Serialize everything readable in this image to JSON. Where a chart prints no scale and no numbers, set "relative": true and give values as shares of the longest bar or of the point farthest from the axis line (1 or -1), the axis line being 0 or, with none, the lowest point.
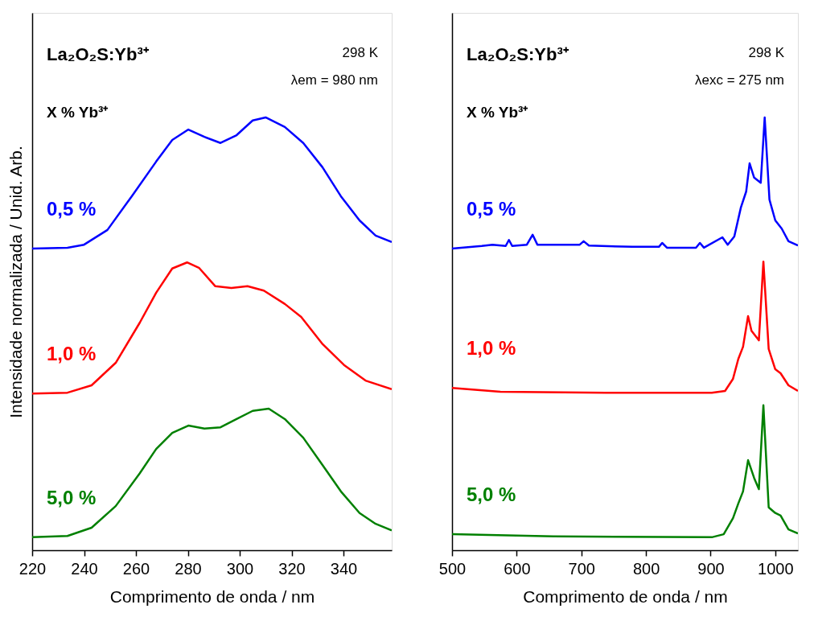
{
  "chart_data": [
    {
      "type": "line",
      "relative": true,
      "xlabel": "Comprimento de onda / nm",
      "ylabel": "Intensidade normalizada / Unid. Arb.",
      "xlim": [
        220,
        358.6
      ],
      "xticks": [
        220,
        240,
        260,
        280,
        300,
        320,
        340
      ],
      "grid": false,
      "legend": false,
      "marker": "none",
      "line_style": "solid",
      "annotations": [
        "La₂O₂S:Yb³⁺",
        "298 K",
        "λem = 980 nm",
        "X % Yb³⁺"
      ],
      "series": [
        {
          "name": "0,5 %",
          "color": "#0000ff",
          "x": [
            220,
            233.6,
            240,
            249,
            258.4,
            267.8,
            274,
            280.2,
            286.4,
            292.6,
            298.8,
            305,
            310,
            317.4,
            324.5,
            331.9,
            339,
            346.2,
            352.4,
            358.6
          ],
          "values": [
            0.697,
            0.699,
            0.706,
            0.74,
            0.818,
            0.898,
            0.948,
            0.972,
            0.955,
            0.941,
            0.959,
            0.993,
            1.0,
            0.978,
            0.941,
            0.885,
            0.818,
            0.762,
            0.727,
            0.712
          ]
        },
        {
          "name": "1,0 %",
          "color": "#ff0000",
          "x": [
            220,
            233.6,
            242.9,
            252.2,
            261.5,
            267.8,
            274,
            279.7,
            284.4,
            290.6,
            296.8,
            303,
            309.3,
            317.4,
            323.7,
            332,
            340.2,
            348.5,
            358.6
          ],
          "values": [
            0.362,
            0.364,
            0.381,
            0.433,
            0.526,
            0.595,
            0.651,
            0.665,
            0.652,
            0.61,
            0.606,
            0.61,
            0.6,
            0.569,
            0.539,
            0.476,
            0.428,
            0.392,
            0.372
          ]
        },
        {
          "name": "5,0 %",
          "color": "#008000",
          "x": [
            220,
            233.6,
            242.9,
            252.2,
            261.5,
            267.8,
            274,
            280.2,
            286.4,
            292.6,
            298.8,
            305,
            311.2,
            317.4,
            324.5,
            331.9,
            339,
            346.2,
            352.4,
            358.6
          ],
          "values": [
            0.03,
            0.033,
            0.052,
            0.102,
            0.178,
            0.234,
            0.271,
            0.288,
            0.281,
            0.284,
            0.303,
            0.322,
            0.327,
            0.303,
            0.26,
            0.197,
            0.136,
            0.086,
            0.061,
            0.046
          ]
        }
      ]
    },
    {
      "type": "line",
      "relative": true,
      "xlabel": "Comprimento de onda / nm",
      "xlim": [
        500,
        1035
      ],
      "xticks": [
        500,
        600,
        700,
        800,
        900,
        1000
      ],
      "grid": false,
      "legend": false,
      "marker": "none",
      "line_style": "solid",
      "annotations": [
        "La₂O₂S:Yb³⁺",
        "298 K",
        "λexc = 275 nm",
        "X % Yb³⁺"
      ],
      "series": [
        {
          "name": "0,5 %",
          "color": "#0000ff",
          "x": [
            500,
            546,
            562.5,
            583,
            588,
            593,
            615.7,
            624.6,
            632,
            697.5,
            703.6,
            711.7,
            779,
            820,
            825,
            832.4,
            877.3,
            883.4,
            889.6,
            918.2,
            926.4,
            936.6,
            946.8,
            955,
            960.3,
            967.3,
            977.5,
            983.6,
            991,
            1000,
            1010,
            1020.4,
            1035
          ],
          "values": [
            0.697,
            0.703,
            0.706,
            0.703,
            0.717,
            0.703,
            0.706,
            0.729,
            0.706,
            0.706,
            0.714,
            0.704,
            0.701,
            0.701,
            0.71,
            0.699,
            0.699,
            0.71,
            0.699,
            0.723,
            0.706,
            0.725,
            0.792,
            0.829,
            0.894,
            0.861,
            0.849,
            1.0,
            0.81,
            0.762,
            0.743,
            0.714,
            0.704
          ]
        },
        {
          "name": "1,0 %",
          "color": "#ff0000",
          "x": [
            500,
            574.8,
            738,
            901.8,
            922.3,
            934.6,
            942.8,
            950.1,
            957.9,
            963.2,
            974.6,
            981.6,
            989.8,
            1000,
            1008.2,
            1020.4,
            1035
          ],
          "values": [
            0.375,
            0.366,
            0.364,
            0.364,
            0.368,
            0.396,
            0.442,
            0.47,
            0.541,
            0.507,
            0.485,
            0.667,
            0.465,
            0.418,
            0.409,
            0.381,
            0.368
          ]
        },
        {
          "name": "5,0 %",
          "color": "#008000",
          "x": [
            500,
            656.5,
            901.8,
            920.2,
            934.6,
            942.8,
            950.1,
            957.9,
            967.3,
            974.6,
            981.6,
            989.8,
            1000,
            1008.2,
            1020.4,
            1035
          ],
          "values": [
            0.037,
            0.032,
            0.03,
            0.037,
            0.074,
            0.108,
            0.136,
            0.208,
            0.167,
            0.141,
            0.335,
            0.099,
            0.086,
            0.08,
            0.048,
            0.039
          ]
        }
      ]
    }
  ]
}
